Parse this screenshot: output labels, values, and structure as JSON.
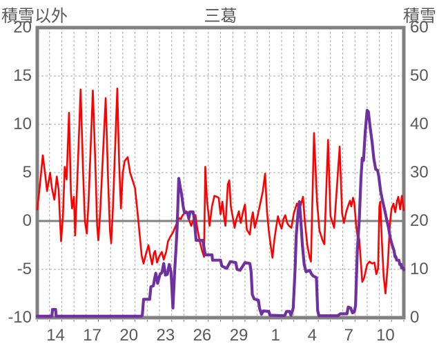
{
  "title": "三葛",
  "left_axis_title": "積雪以外",
  "right_axis_title": "積雪",
  "colors": {
    "temperature_line": "#FF0000",
    "snow_line": "#7030A0",
    "grid": "#A6A6A6",
    "border": "#808080",
    "zero_line": "#808080",
    "text": "#595959",
    "background": "#FFFFFF"
  },
  "chart_data": {
    "type": "line",
    "title": "三葛",
    "left_axis": {
      "label": "積雪以外",
      "min": -10,
      "max": 20,
      "ticks": [
        20,
        15,
        10,
        5,
        0,
        -5,
        -10
      ]
    },
    "right_axis": {
      "label": "積雪",
      "min": 0,
      "max": 60,
      "ticks": [
        60,
        50,
        40,
        30,
        20,
        10,
        0
      ]
    },
    "x_axis": {
      "days": 30,
      "tick_labels": [
        "14",
        "17",
        "20",
        "23",
        "26",
        "29",
        "1",
        "4",
        "7",
        "10"
      ],
      "first_label_offset_days": 1.5,
      "label_interval_days": 3,
      "gridline_every_days": 1
    },
    "grid": "dashed-vertical-daily-and-horizontal-major, solid zero line",
    "legend": "none",
    "series": [
      {
        "name": "temperature",
        "axis": "left",
        "color": "#FF0000",
        "width": 2.6,
        "points": [
          [
            0,
            1.2
          ],
          [
            0.2,
            3.5
          ],
          [
            0.45,
            6.8
          ],
          [
            0.65,
            4.8
          ],
          [
            0.8,
            3.1
          ],
          [
            1.05,
            5
          ],
          [
            1.2,
            3.4
          ],
          [
            1.4,
            2.2
          ],
          [
            1.6,
            4.6
          ],
          [
            1.75,
            3.2
          ],
          [
            1.85,
            0.5
          ],
          [
            1.95,
            -2.1
          ],
          [
            2.1,
            0.5
          ],
          [
            2.25,
            5.6
          ],
          [
            2.4,
            4.3
          ],
          [
            2.6,
            11.2
          ],
          [
            2.75,
            3
          ],
          [
            2.85,
            1.3
          ],
          [
            3,
            2.5
          ],
          [
            3.1,
            -1.5
          ],
          [
            3.3,
            5
          ],
          [
            3.55,
            13.6
          ],
          [
            3.75,
            5
          ],
          [
            3.9,
            0
          ],
          [
            4.05,
            -1.3
          ],
          [
            4.2,
            2
          ],
          [
            4.55,
            13.5
          ],
          [
            4.75,
            6
          ],
          [
            4.9,
            -0.5
          ],
          [
            5,
            -2
          ],
          [
            5.15,
            1
          ],
          [
            5.6,
            12.7
          ],
          [
            5.8,
            4
          ],
          [
            5.95,
            -1
          ],
          [
            6.05,
            -2.3
          ],
          [
            6.2,
            1.5
          ],
          [
            6.55,
            13.7
          ],
          [
            6.7,
            6
          ],
          [
            6.85,
            1.3
          ],
          [
            7,
            5
          ],
          [
            7.15,
            6.2
          ],
          [
            7.4,
            6.6
          ],
          [
            7.6,
            5
          ],
          [
            7.8,
            4.2
          ],
          [
            8,
            3.4
          ],
          [
            8.2,
            1
          ],
          [
            8.35,
            -1
          ],
          [
            8.55,
            -3.6
          ],
          [
            8.7,
            -4.4
          ],
          [
            8.9,
            -3.4
          ],
          [
            9.1,
            -2.5
          ],
          [
            9.25,
            -3.6
          ],
          [
            9.4,
            -4.5
          ],
          [
            9.55,
            -3.3
          ],
          [
            9.65,
            -3.1
          ],
          [
            9.8,
            -4.3
          ],
          [
            10,
            -3.6
          ],
          [
            10.2,
            -3.2
          ],
          [
            10.35,
            -4
          ],
          [
            10.55,
            -3.2
          ],
          [
            10.7,
            -2.1
          ],
          [
            10.9,
            -1.6
          ],
          [
            11.1,
            -1.2
          ],
          [
            11.3,
            -0.6
          ],
          [
            11.45,
            -0.1
          ],
          [
            11.6,
            0.3
          ],
          [
            11.75,
            0.2
          ],
          [
            11.9,
            0.6
          ],
          [
            12.2,
            1
          ],
          [
            12.4,
            0.2
          ],
          [
            12.6,
            -0.5
          ],
          [
            12.8,
            0.2
          ],
          [
            12.95,
            0.6
          ],
          [
            13.1,
            -0.8
          ],
          [
            13.3,
            -2.1
          ],
          [
            13.5,
            -3.1
          ],
          [
            13.65,
            -3.7
          ],
          [
            13.75,
            5.6
          ],
          [
            13.9,
            2
          ],
          [
            14,
            0.9
          ],
          [
            14.1,
            -0.5
          ],
          [
            14.3,
            1.5
          ],
          [
            14.5,
            2.6
          ],
          [
            14.7,
            2.5
          ],
          [
            14.85,
            2.4
          ],
          [
            15,
            0.7
          ],
          [
            15.15,
            2
          ],
          [
            15.3,
            0.3
          ],
          [
            15.4,
            -0.5
          ],
          [
            15.6,
            3.8
          ],
          [
            15.72,
            4.2
          ],
          [
            15.85,
            1.5
          ],
          [
            16,
            0.4
          ],
          [
            16.15,
            -0.7
          ],
          [
            16.3,
            0.2
          ],
          [
            16.5,
            1
          ],
          [
            16.65,
            -0.2
          ],
          [
            16.85,
            1
          ],
          [
            17,
            1.7
          ],
          [
            17.15,
            -0.9
          ],
          [
            17.4,
            -1.4
          ],
          [
            17.55,
            0.3
          ],
          [
            17.65,
            0.9
          ],
          [
            17.8,
            -0.7
          ],
          [
            18,
            0.3
          ],
          [
            18.2,
            1.5
          ],
          [
            18.45,
            3
          ],
          [
            18.65,
            4.9
          ],
          [
            18.8,
            1
          ],
          [
            18.95,
            -1
          ],
          [
            19.1,
            -2.5
          ],
          [
            19.25,
            -3.8
          ],
          [
            19.4,
            -2
          ],
          [
            19.55,
            -0.7
          ],
          [
            19.7,
            0.5
          ],
          [
            19.85,
            -0.3
          ],
          [
            20,
            -0.8
          ],
          [
            20.15,
            0.2
          ],
          [
            20.3,
            0.6
          ],
          [
            20.45,
            -0.2
          ],
          [
            20.6,
            -0.5
          ],
          [
            20.8,
            -0.7
          ],
          [
            21,
            0.8
          ],
          [
            21.25,
            1.8
          ],
          [
            21.45,
            1.2
          ],
          [
            21.6,
            1.8
          ],
          [
            21.75,
            2.5
          ],
          [
            21.9,
            0
          ],
          [
            22.1,
            -2.5
          ],
          [
            22.3,
            -3.8
          ],
          [
            22.4,
            -4.2
          ],
          [
            22.65,
            9.1
          ],
          [
            22.9,
            2
          ],
          [
            23.1,
            -1
          ],
          [
            23.35,
            -2
          ],
          [
            23.5,
            -2.4
          ],
          [
            23.8,
            8.4
          ],
          [
            24,
            0.5
          ],
          [
            24.15,
            -0.1
          ],
          [
            24.3,
            -0.7
          ],
          [
            24.75,
            7.7
          ],
          [
            24.95,
            0.8
          ],
          [
            25.1,
            -0.2
          ],
          [
            25.3,
            1
          ],
          [
            25.45,
            1.6
          ],
          [
            25.6,
            2.1
          ],
          [
            25.7,
            1.5
          ],
          [
            25.85,
            2.4
          ],
          [
            25.95,
            1.9
          ],
          [
            26.1,
            -0.5
          ],
          [
            26.25,
            -1.9
          ],
          [
            26.35,
            -1.8
          ],
          [
            26.6,
            -6.3
          ],
          [
            26.75,
            -5.9
          ],
          [
            27,
            -4.5
          ],
          [
            27.2,
            -4.2
          ],
          [
            27.4,
            -4.4
          ],
          [
            27.6,
            -4.3
          ],
          [
            27.75,
            -5.5
          ],
          [
            27.9,
            -4.9
          ],
          [
            28,
            1.5
          ],
          [
            28.08,
            2
          ],
          [
            28.2,
            -1.9
          ],
          [
            28.35,
            -5.7
          ],
          [
            28.5,
            -7.5
          ],
          [
            28.7,
            -4.3
          ],
          [
            28.87,
            -0.2
          ],
          [
            29,
            1.3
          ],
          [
            29.15,
            1.8
          ],
          [
            29.3,
            0.9
          ],
          [
            29.45,
            2.1
          ],
          [
            29.55,
            2.5
          ],
          [
            29.7,
            1.2
          ],
          [
            29.85,
            2.6
          ],
          [
            30,
            1.1
          ]
        ]
      },
      {
        "name": "snow-depth",
        "axis": "right",
        "color": "#7030A0",
        "width": 4.2,
        "points": [
          [
            0,
            0.3
          ],
          [
            1.2,
            0.3
          ],
          [
            1.25,
            1.7
          ],
          [
            1.5,
            1.7
          ],
          [
            1.55,
            0.3
          ],
          [
            8.5,
            0.3
          ],
          [
            8.6,
            0.5
          ],
          [
            8.7,
            3.8
          ],
          [
            9.2,
            3.8
          ],
          [
            9.3,
            6.4
          ],
          [
            9.5,
            6.6
          ],
          [
            9.6,
            8
          ],
          [
            9.7,
            9.2
          ],
          [
            9.85,
            7.1
          ],
          [
            10.05,
            9
          ],
          [
            10.2,
            9.3
          ],
          [
            10.35,
            11.2
          ],
          [
            10.5,
            8.8
          ],
          [
            10.65,
            9
          ],
          [
            10.8,
            11
          ],
          [
            10.95,
            9.5
          ],
          [
            11.1,
            2
          ],
          [
            11.25,
            9.8
          ],
          [
            11.35,
            14
          ],
          [
            11.45,
            19
          ],
          [
            11.58,
            28.8
          ],
          [
            11.7,
            27
          ],
          [
            11.8,
            25.7
          ],
          [
            11.95,
            22.9
          ],
          [
            12.05,
            21.7
          ],
          [
            12.3,
            21.7
          ],
          [
            12.4,
            20.5
          ],
          [
            12.5,
            21.9
          ],
          [
            12.75,
            21.9
          ],
          [
            12.85,
            20.5
          ],
          [
            13,
            16
          ],
          [
            13.55,
            16
          ],
          [
            13.65,
            14.5
          ],
          [
            13.75,
            13
          ],
          [
            14.3,
            13
          ],
          [
            14.35,
            11.9
          ],
          [
            15,
            11.9
          ],
          [
            15.1,
            10.7
          ],
          [
            15.5,
            10.2
          ],
          [
            15.8,
            11.6
          ],
          [
            16.25,
            11.4
          ],
          [
            16.35,
            10
          ],
          [
            16.6,
            9.8
          ],
          [
            17,
            11.4
          ],
          [
            17.4,
            11.2
          ],
          [
            17.5,
            9.6
          ],
          [
            17.6,
            4.8
          ],
          [
            17.75,
            3.9
          ],
          [
            18.1,
            3.6
          ],
          [
            18.2,
            1.9
          ],
          [
            18.35,
            0.7
          ],
          [
            18.5,
            1.4
          ],
          [
            18.95,
            1.3
          ],
          [
            19.05,
            0.5
          ],
          [
            20.25,
            0.4
          ],
          [
            20.4,
            1.3
          ],
          [
            20.65,
            1.3
          ],
          [
            20.77,
            0.5
          ],
          [
            20.95,
            2
          ],
          [
            21.1,
            10
          ],
          [
            21.2,
            17
          ],
          [
            21.35,
            22
          ],
          [
            21.45,
            24
          ],
          [
            21.55,
            21
          ],
          [
            21.7,
            15
          ],
          [
            21.85,
            11
          ],
          [
            22,
            9.5
          ],
          [
            22.3,
            9.8
          ],
          [
            22.45,
            9
          ],
          [
            22.6,
            8.6
          ],
          [
            22.85,
            8.3
          ],
          [
            22.95,
            1.5
          ],
          [
            23.05,
            0.4
          ],
          [
            24.6,
            0.4
          ],
          [
            24.8,
            0.8
          ],
          [
            25.35,
            0.8
          ],
          [
            25.45,
            2.2
          ],
          [
            25.65,
            2
          ],
          [
            25.8,
            1
          ],
          [
            25.95,
            1.2
          ],
          [
            26.05,
            2.5
          ],
          [
            26.2,
            14
          ],
          [
            26.35,
            20
          ],
          [
            26.5,
            29
          ],
          [
            26.6,
            33
          ],
          [
            26.7,
            32.5
          ],
          [
            26.85,
            38.6
          ],
          [
            27,
            42.9
          ],
          [
            27.1,
            42.6
          ],
          [
            27.25,
            39.3
          ],
          [
            27.4,
            36.4
          ],
          [
            27.55,
            32.9
          ],
          [
            27.7,
            30.7
          ],
          [
            27.85,
            30.5
          ],
          [
            27.95,
            29.3
          ],
          [
            28.1,
            26.2
          ],
          [
            28.25,
            24.3
          ],
          [
            28.45,
            22.1
          ],
          [
            28.6,
            20.3
          ],
          [
            28.75,
            18.6
          ],
          [
            28.9,
            16.4
          ],
          [
            29.05,
            15
          ],
          [
            29.2,
            13.9
          ],
          [
            29.28,
            12.6
          ],
          [
            29.35,
            12.6
          ],
          [
            29.42,
            11.9
          ],
          [
            29.6,
            11.9
          ],
          [
            29.68,
            11
          ],
          [
            29.78,
            11
          ],
          [
            29.82,
            10.3
          ],
          [
            29.95,
            10.3
          ],
          [
            30,
            9.9
          ]
        ]
      }
    ]
  }
}
